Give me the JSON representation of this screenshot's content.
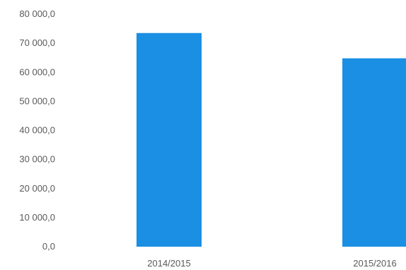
{
  "chart_data": {
    "type": "bar",
    "categories": [
      "2014/2015",
      "2015/2016"
    ],
    "values": [
      73500,
      64800
    ],
    "ylim": [
      0,
      80000
    ],
    "yticks": [
      0,
      10000,
      20000,
      30000,
      40000,
      50000,
      60000,
      70000,
      80000
    ],
    "ytick_labels": [
      "0,0",
      "10 000,0",
      "20 000,0",
      "30 000,0",
      "40 000,0",
      "50 000,0",
      "60 000,0",
      "70 000,0",
      "80 000,0"
    ],
    "title": "",
    "xlabel": "",
    "ylabel": "",
    "grid": false,
    "bar_color": "#1a8fe3"
  }
}
